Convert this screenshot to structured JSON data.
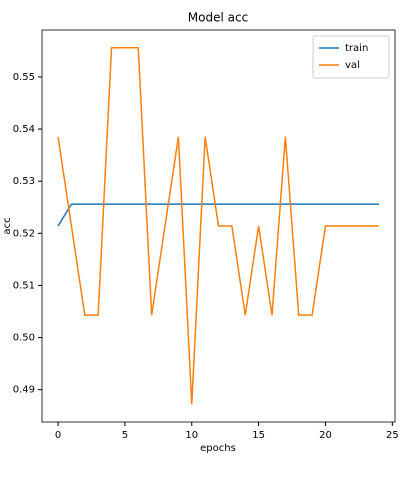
{
  "chart_data": {
    "type": "line",
    "title": "Model acc",
    "x_label": "epochs",
    "y_label": "acc",
    "x": [
      0,
      1,
      2,
      3,
      4,
      5,
      6,
      7,
      8,
      9,
      10,
      11,
      12,
      13,
      14,
      15,
      16,
      17,
      18,
      19,
      20,
      21,
      22,
      23,
      24
    ],
    "series": [
      {
        "name": "train",
        "color": "#1f77b4",
        "values": [
          0.5214,
          0.5256,
          0.5256,
          0.5256,
          0.5256,
          0.5256,
          0.5256,
          0.5256,
          0.5256,
          0.5256,
          0.5256,
          0.5256,
          0.5256,
          0.5256,
          0.5256,
          0.5256,
          0.5256,
          0.5256,
          0.5256,
          0.5256,
          0.5256,
          0.5256,
          0.5256,
          0.5256,
          0.5256
        ]
      },
      {
        "name": "val",
        "color": "#ff7f0e",
        "values": [
          0.5385,
          0.5214,
          0.5043,
          0.5043,
          0.5556,
          0.5556,
          0.5556,
          0.5043,
          0.5214,
          0.5385,
          0.4872,
          0.5385,
          0.5214,
          0.5214,
          0.5043,
          0.5214,
          0.5043,
          0.5385,
          0.5043,
          0.5043,
          0.5214,
          0.5214,
          0.5214,
          0.5214,
          0.5214
        ]
      }
    ],
    "xlim": [
      -1.2,
      25.2
    ],
    "xticks": [
      0,
      5,
      10,
      15,
      20,
      25
    ],
    "ylim": [
      0.4838,
      0.559
    ],
    "yticks": [
      0.49,
      {
        "value": 0.5,
        "label": "0.50"
      },
      0.51,
      0.52,
      0.53,
      0.54,
      0.55
    ],
    "legend": "upper right"
  }
}
